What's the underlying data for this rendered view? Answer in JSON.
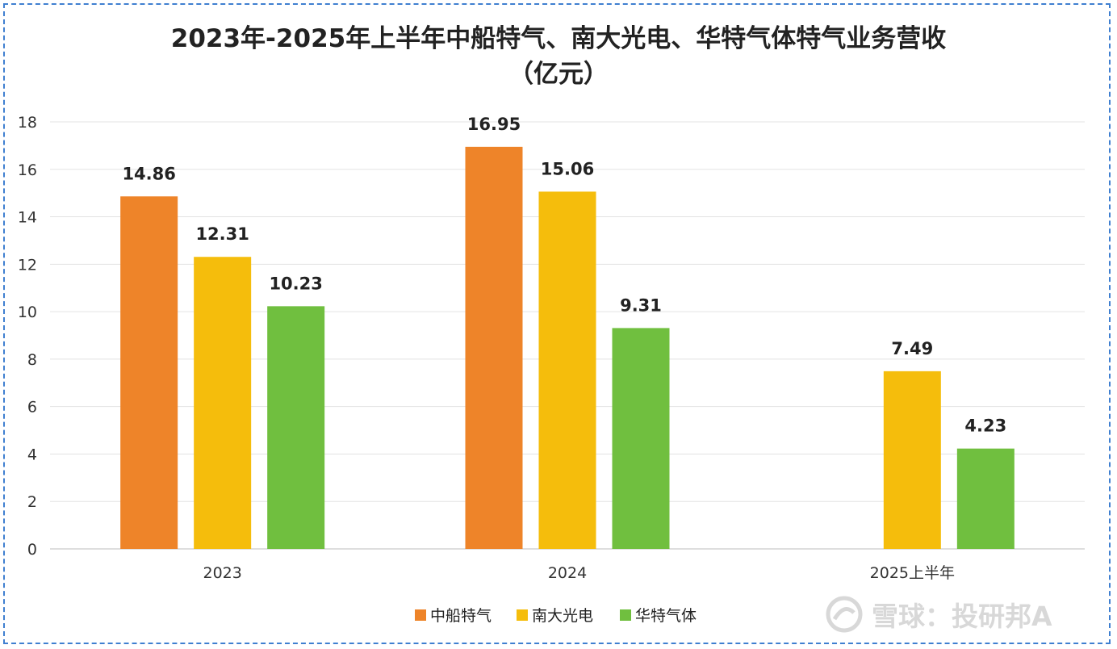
{
  "title_line1": "2023年-2025年上半年中船特气、南大光电、华特气体特气业务营收",
  "title_line2": "（亿元）",
  "watermark": "雪球：投研邦A",
  "colors": {
    "中船特气": "#ee8429",
    "南大光电": "#f5bd0c",
    "华特气体": "#70bf3f"
  },
  "chart_data": {
    "type": "bar",
    "title": "2023年-2025年上半年中船特气、南大光电、华特气体特气业务营收（亿元）",
    "categories": [
      "2023",
      "2024",
      "2025上半年"
    ],
    "series": [
      {
        "name": "中船特气",
        "values": [
          14.86,
          16.95,
          null
        ]
      },
      {
        "name": "南大光电",
        "values": [
          12.31,
          15.06,
          7.49
        ]
      },
      {
        "name": "华特气体",
        "values": [
          10.23,
          9.31,
          4.23
        ]
      }
    ],
    "ylim": [
      0,
      18
    ],
    "yticks": [
      0,
      2,
      4,
      6,
      8,
      10,
      12,
      14,
      16,
      18
    ],
    "grid": true,
    "legend": "bottom",
    "xlabel": "",
    "ylabel": ""
  }
}
